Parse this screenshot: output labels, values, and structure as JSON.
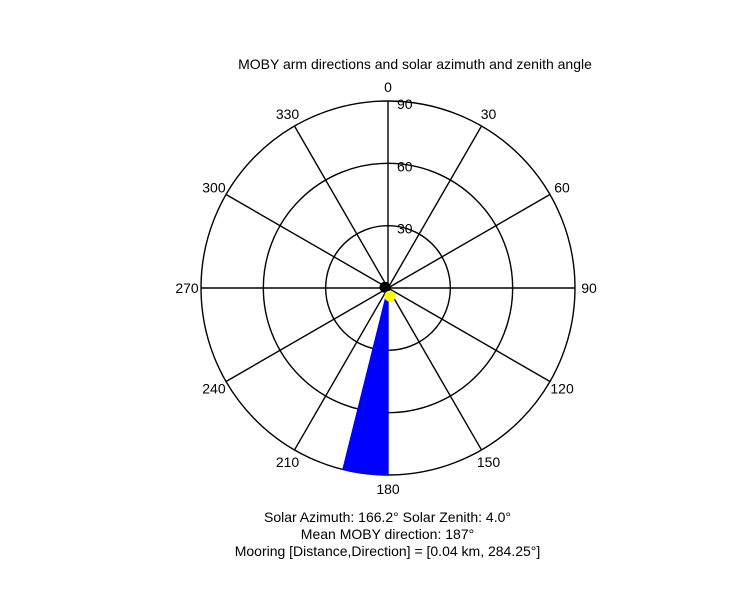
{
  "chart_data": {
    "type": "polar",
    "title": "MOBY arm directions and solar azimuth and zenith angle",
    "direction": "clockwise",
    "zero_location": "top",
    "angle_ticks": [
      "0",
      "30",
      "60",
      "90",
      "120",
      "150",
      "180",
      "210",
      "240",
      "270",
      "300",
      "330"
    ],
    "angle_tick_values": [
      0,
      30,
      60,
      90,
      120,
      150,
      180,
      210,
      240,
      270,
      300,
      330
    ],
    "radial_ticks": [
      "30",
      "60",
      "90"
    ],
    "radial_tick_values": [
      30,
      60,
      90
    ],
    "rlim": [
      0,
      90
    ],
    "grid": true,
    "series": [
      {
        "kind": "sector",
        "color": "#0000ff",
        "start_angle": 180,
        "end_angle": 194,
        "radius": 90
      },
      {
        "kind": "point",
        "color": "#000000",
        "angle": 284.25,
        "radius": 1.5
      },
      {
        "kind": "point",
        "color": "#ffff00",
        "angle": 166.2,
        "radius": 4.0
      }
    ],
    "annotations": [
      "Solar Azimuth: 166.2°   Solar Zenith: 4.0°",
      "Mean MOBY direction: 187°",
      "Mooring [Distance,Direction] = [0.04 km, 284.25°]"
    ]
  }
}
